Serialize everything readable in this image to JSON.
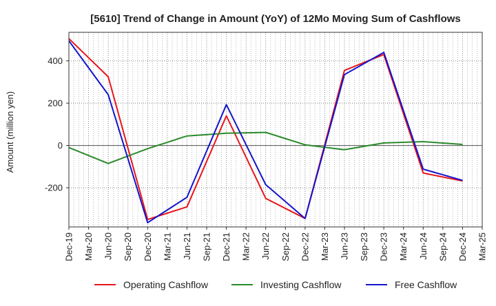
{
  "chart_data": {
    "type": "line",
    "title": "[5610]  Trend of Change in Amount (YoY) of 12Mo Moving Sum of Cashflows",
    "xlabel": "",
    "ylabel": "Amount (million yen)",
    "ylim": [
      -385,
      535
    ],
    "yticks": [
      400,
      200,
      0,
      -200
    ],
    "ytick_labels": [
      "400",
      "200",
      "0",
      "-200"
    ],
    "categories": [
      "Dec-19",
      "Mar-20",
      "Jun-20",
      "Sep-20",
      "Dec-20",
      "Mar-21",
      "Jun-21",
      "Sep-21",
      "Dec-21",
      "Mar-22",
      "Jun-22",
      "Sep-22",
      "Dec-22",
      "Mar-23",
      "Jun-23",
      "Sep-23",
      "Dec-23",
      "Mar-24",
      "Jun-24",
      "Sep-24",
      "Dec-24",
      "Mar-25"
    ],
    "grid": true,
    "legend_position": "bottom",
    "series": [
      {
        "name": "Operating Cashflow",
        "color": "#e8141b",
        "values": [
          505,
          null,
          325,
          null,
          -350,
          null,
          -290,
          null,
          140,
          null,
          -250,
          null,
          -345,
          null,
          355,
          null,
          430,
          null,
          -130,
          null,
          -168,
          null
        ]
      },
      {
        "name": "Investing Cashflow",
        "color": "#2a8a2a",
        "values": [
          -10,
          null,
          -85,
          null,
          -15,
          null,
          45,
          null,
          58,
          null,
          62,
          null,
          3,
          null,
          -20,
          null,
          12,
          null,
          18,
          null,
          5,
          null
        ]
      },
      {
        "name": "Free Cashflow",
        "color": "#1414cc",
        "values": [
          495,
          null,
          240,
          null,
          -365,
          null,
          -245,
          null,
          193,
          null,
          -185,
          null,
          -345,
          null,
          335,
          null,
          440,
          null,
          -112,
          null,
          -165,
          null
        ]
      }
    ]
  }
}
